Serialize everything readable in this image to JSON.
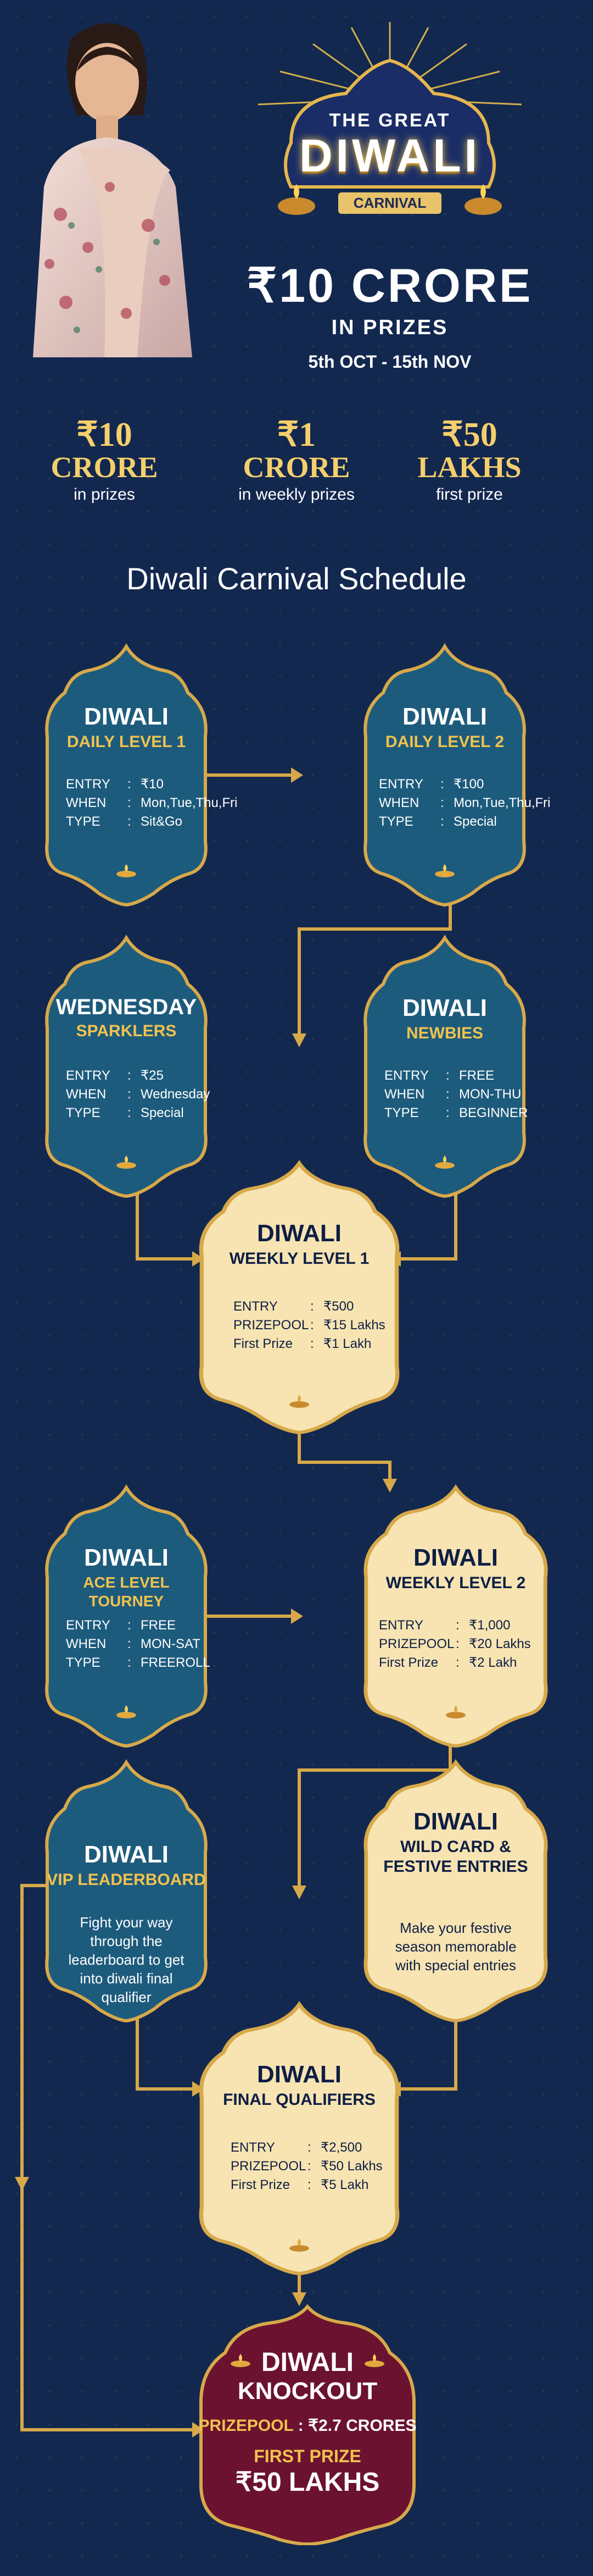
{
  "header": {
    "logo": {
      "line1": "THE GREAT",
      "line2": "DIWALI",
      "line3": "CARNIVAL"
    },
    "headline": "₹10 CRORE",
    "subheadline": "IN PRIZES",
    "date_range": "5th OCT - 15th NOV",
    "stats": [
      {
        "big": "₹10",
        "big2": "CRORE",
        "small": "in prizes"
      },
      {
        "big": "₹1",
        "big2": "CRORE",
        "small": "in weekly prizes"
      },
      {
        "big": "₹50",
        "big2": "LAKHS",
        "small": "first prize"
      }
    ]
  },
  "schedule_title": "Diwali Carnival Schedule",
  "cards": {
    "daily1": {
      "title": "DIWALI",
      "subtitle": "DAILY LEVEL 1",
      "rows": [
        [
          "ENTRY",
          ":",
          "₹10"
        ],
        [
          "WHEN",
          ":",
          "Mon,Tue,Thu,Fri"
        ],
        [
          "TYPE",
          ":",
          "Sit&Go"
        ]
      ]
    },
    "daily2": {
      "title": "DIWALI",
      "subtitle": "DAILY LEVEL 2",
      "rows": [
        [
          "ENTRY",
          ":",
          "₹100"
        ],
        [
          "WHEN",
          ":",
          "Mon,Tue,Thu,Fri"
        ],
        [
          "TYPE",
          ":",
          "Special"
        ]
      ]
    },
    "wednesday": {
      "title": "WEDNESDAY",
      "subtitle": "SPARKLERS",
      "rows": [
        [
          "ENTRY",
          ":",
          "₹25"
        ],
        [
          "WHEN",
          ":",
          "Wednesday"
        ],
        [
          "TYPE",
          ":",
          "Special"
        ]
      ]
    },
    "newbies": {
      "title": "DIWALI",
      "subtitle": "NEWBIES",
      "rows": [
        [
          "ENTRY",
          ":",
          "FREE"
        ],
        [
          "WHEN",
          ":",
          "MON-THU"
        ],
        [
          "TYPE",
          ":",
          "BEGINNER"
        ]
      ]
    },
    "weekly1": {
      "title": "DIWALI",
      "subtitle": "WEEKLY LEVEL 1",
      "rows": [
        [
          "ENTRY",
          ":",
          "₹500"
        ],
        [
          "PRIZEPOOL",
          ":",
          "₹15 Lakhs"
        ],
        [
          "First Prize",
          ":",
          "₹1 Lakh"
        ]
      ]
    },
    "ace": {
      "title": "DIWALI",
      "subtitle": "ACE LEVEL TOURNEY",
      "rows": [
        [
          "ENTRY",
          ":",
          "FREE"
        ],
        [
          "WHEN",
          ":",
          "MON-SAT"
        ],
        [
          "TYPE",
          ":",
          "FREEROLL"
        ]
      ]
    },
    "weekly2": {
      "title": "DIWALI",
      "subtitle": "WEEKLY LEVEL 2",
      "rows": [
        [
          "ENTRY",
          ":",
          "₹1,000"
        ],
        [
          "PRIZEPOOL",
          ":",
          "₹20 Lakhs"
        ],
        [
          "First Prize",
          ":",
          "₹2 Lakh"
        ]
      ]
    },
    "vip": {
      "title": "DIWALI",
      "subtitle": "VIP LEADERBOARD",
      "desc": "Fight your way through the leaderboard to get into diwali final qualifier"
    },
    "wildcard": {
      "title": "DIWALI",
      "subtitle": "WILD CARD & FESTIVE ENTRIES",
      "desc": "Make your festive season memorable with special entries"
    },
    "finalq": {
      "title": "DIWALI",
      "subtitle": "FINAL QUALIFIERS",
      "rows": [
        [
          "ENTRY",
          ":",
          "₹2,500"
        ],
        [
          "PRIZEPOOL",
          ":",
          "₹50 Lakhs"
        ],
        [
          "First Prize",
          ":",
          "₹5 Lakh"
        ]
      ]
    },
    "knockout": {
      "title": "DIWALI",
      "subtitle": "KNOCKOUT",
      "prizepool_label": "PRIZEPOOL",
      "prizepool_value": ": ₹2.7 CRORES",
      "first_prize_label": "FIRST PRIZE",
      "first_prize_value": "₹50 LAKHS"
    }
  },
  "colors": {
    "background": "#13284f",
    "gold": "#d7a94a",
    "blue_card": "#1c5a7c",
    "cream_card": "#f7e4b2",
    "knockout_card": "#6b1230"
  }
}
